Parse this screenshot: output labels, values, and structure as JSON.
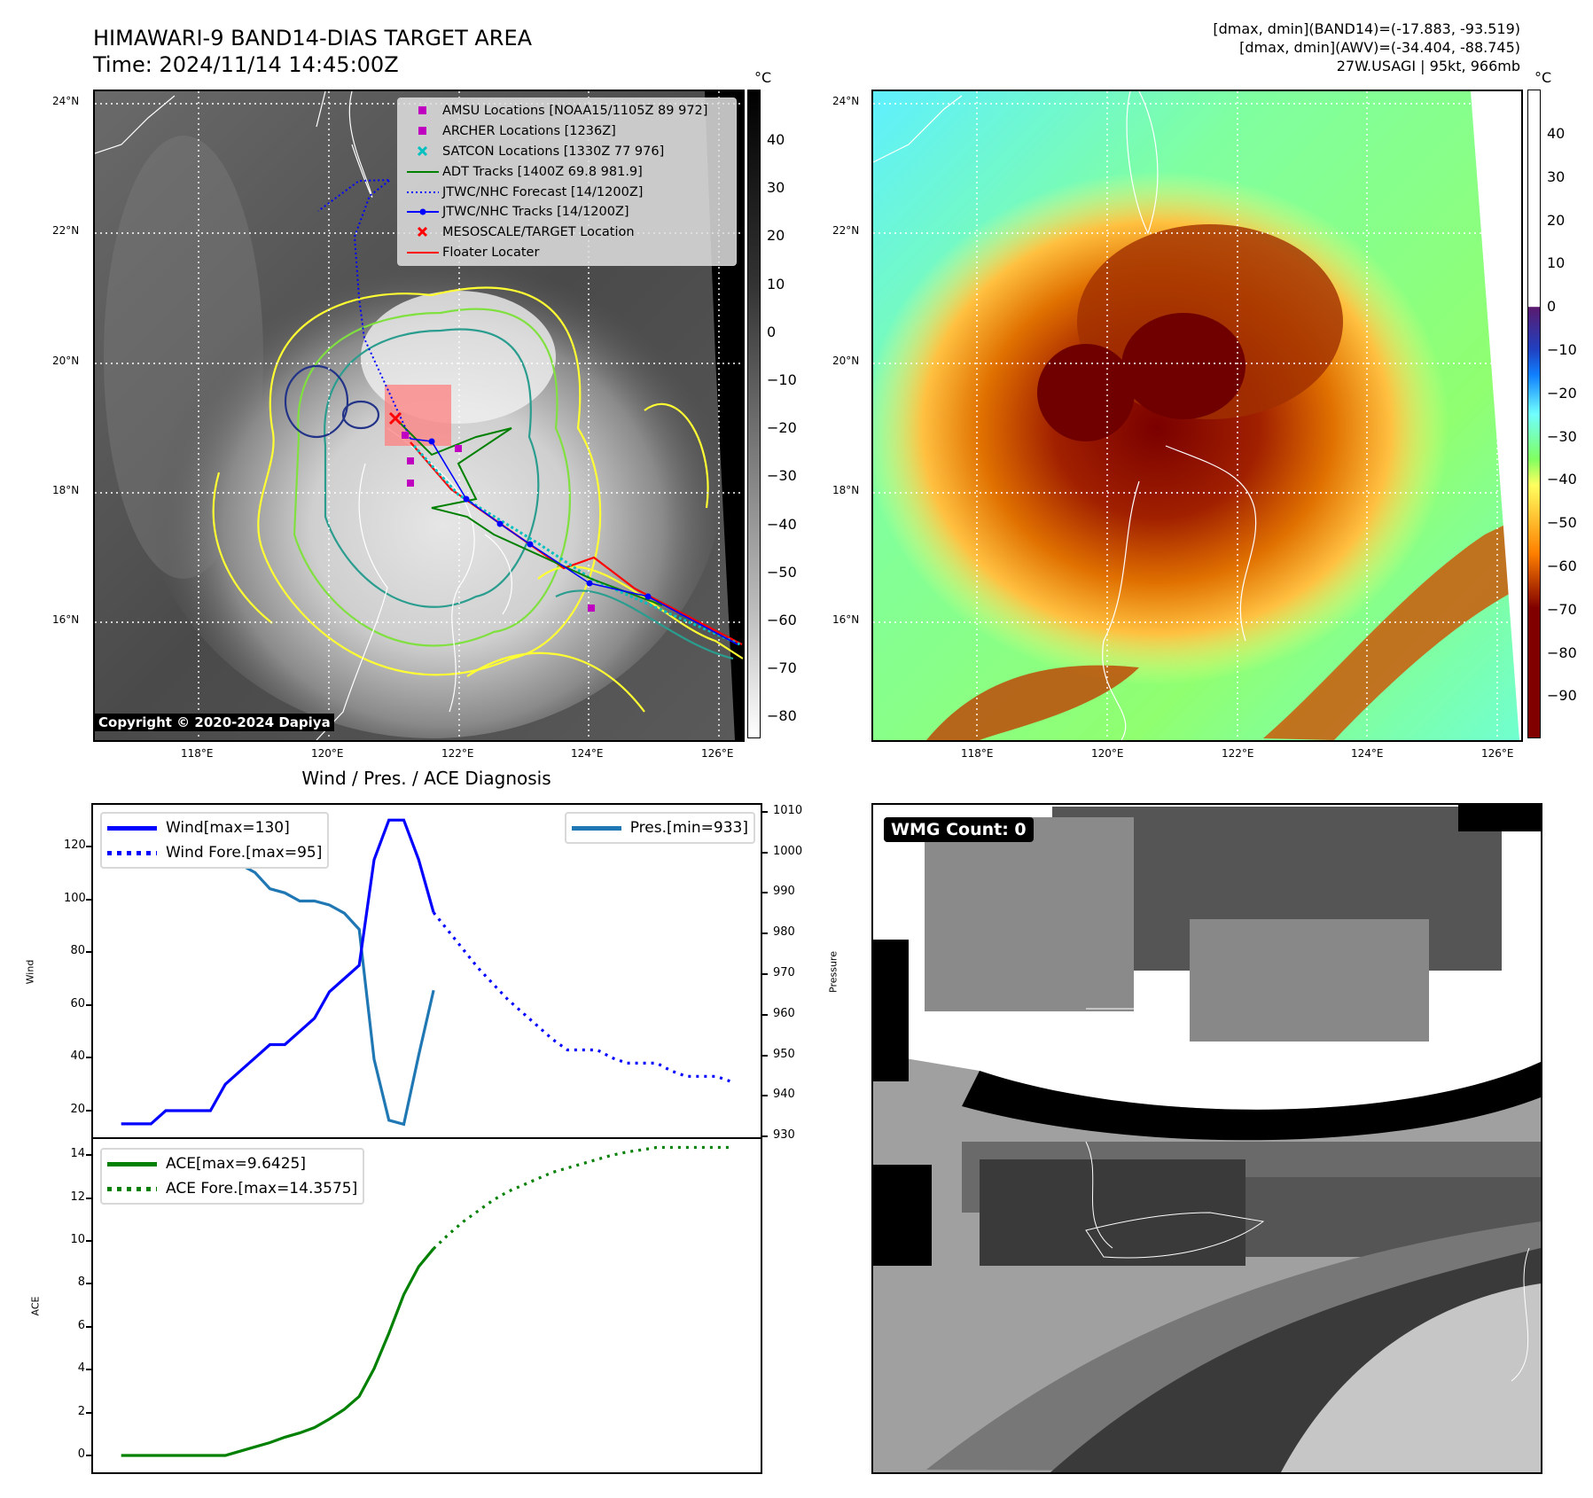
{
  "header": {
    "title_line1": "HIMAWARI-9 BAND14-DIAS TARGET AREA",
    "title_line2": "Time: 2024/11/14 14:45:00Z",
    "info_line1": "[dmax, dmin](BAND14)=(-17.883, -93.519)",
    "info_line2": "[dmax, dmin](AWV)=(-34.404, -88.745)",
    "info_line3": "27W.USAGI | 95kt, 966mb"
  },
  "map": {
    "lat_labels": [
      "24°N",
      "22°N",
      "20°N",
      "18°N",
      "16°N"
    ],
    "lon_labels": [
      "118°E",
      "120°E",
      "122°E",
      "124°E",
      "126°E"
    ],
    "unit": "°C",
    "colorbar1_ticks": [
      "40",
      "30",
      "20",
      "10",
      "0",
      "−10",
      "−20",
      "−30",
      "−40",
      "−50",
      "−60",
      "−70",
      "−80"
    ],
    "colorbar2_ticks": [
      "40",
      "30",
      "20",
      "10",
      "0",
      "−10",
      "−20",
      "−30",
      "−40",
      "−50",
      "−60",
      "−70",
      "−80",
      "−90"
    ],
    "copyright": "Copyright © 2020-2024 Dapiya",
    "legend": [
      {
        "label": "AMSU Locations [NOAA15/1105Z 89 972]",
        "symbol": "square",
        "color": "#c000c0"
      },
      {
        "label": "ARCHER Locations [1236Z]",
        "symbol": "square",
        "color": "#c000c0"
      },
      {
        "label": "SATCON Locations [1330Z 77 976]",
        "symbol": "x",
        "color": "#00c0c0"
      },
      {
        "label": "ADT Tracks [1400Z 69.8 981.9]",
        "symbol": "line",
        "color": "#008000"
      },
      {
        "label": "JTWC/NHC Forecast [14/1200Z]",
        "symbol": "dotted",
        "color": "#0000ff"
      },
      {
        "label": "JTWC/NHC Tracks [14/1200Z]",
        "symbol": "line-dot",
        "color": "#0000ff"
      },
      {
        "label": "MESOSCALE/TARGET Location",
        "symbol": "x",
        "color": "#ff0000"
      },
      {
        "label": "Floater Locater",
        "symbol": "line",
        "color": "#ff0000"
      }
    ],
    "wmg_label": "WMG Count: 0"
  },
  "chart_data": [
    {
      "type": "line",
      "title": "Wind / Pres. / ACE Diagnosis",
      "ylabel": "Wind",
      "y2label": "Pressure",
      "ylim": [
        10,
        135
      ],
      "y2lim": [
        928,
        1012
      ],
      "yticks": [
        20,
        40,
        60,
        80,
        100,
        120
      ],
      "y2ticks": [
        930,
        940,
        950,
        960,
        970,
        980,
        990,
        1000,
        1010
      ],
      "series": [
        {
          "name": "Wind[max=130]",
          "color": "#0000ff",
          "style": "solid",
          "start": 0,
          "values": [
            15,
            15,
            15,
            20,
            20,
            20,
            20,
            30,
            35,
            40,
            45,
            45,
            50,
            55,
            65,
            70,
            75,
            115,
            130,
            130,
            115,
            95
          ]
        },
        {
          "name": "Wind Fore.[max=95]",
          "color": "#0000ff",
          "style": "dotted",
          "start": 21,
          "values": [
            95,
            88,
            81,
            74,
            68,
            62,
            57,
            52,
            47,
            43,
            43,
            43,
            40,
            38,
            38,
            38,
            35,
            33,
            33,
            33,
            31
          ]
        },
        {
          "name": "Pres.[min=933]",
          "color": "#1f77b4",
          "style": "solid",
          "axis": "y2",
          "start": 0,
          "values": [
            1008,
            1008,
            1007,
            1007,
            1005,
            1005,
            1004,
            999,
            997,
            995,
            991,
            990,
            988,
            988,
            987,
            985,
            981,
            949,
            934,
            933,
            950,
            966
          ]
        }
      ]
    },
    {
      "type": "line",
      "ylabel": "ACE",
      "ylim": [
        -0.8,
        15
      ],
      "yticks": [
        0,
        2,
        4,
        6,
        8,
        10,
        12,
        14
      ],
      "series": [
        {
          "name": "ACE[max=9.6425]",
          "color": "#008000",
          "style": "solid",
          "start": 0,
          "values": [
            0,
            0,
            0,
            0,
            0,
            0,
            0,
            0,
            0.2,
            0.4,
            0.6,
            0.85,
            1.05,
            1.3,
            1.7,
            2.15,
            2.75,
            4.05,
            5.7,
            7.5,
            8.8,
            9.64
          ]
        },
        {
          "name": "ACE Fore.[max=14.3575]",
          "color": "#008000",
          "style": "dotted",
          "start": 21,
          "values": [
            9.64,
            10.3,
            10.9,
            11.4,
            11.9,
            12.3,
            12.6,
            12.9,
            13.2,
            13.4,
            13.6,
            13.8,
            14.0,
            14.15,
            14.25,
            14.36,
            14.36,
            14.36,
            14.36,
            14.36,
            14.36
          ]
        }
      ]
    }
  ]
}
